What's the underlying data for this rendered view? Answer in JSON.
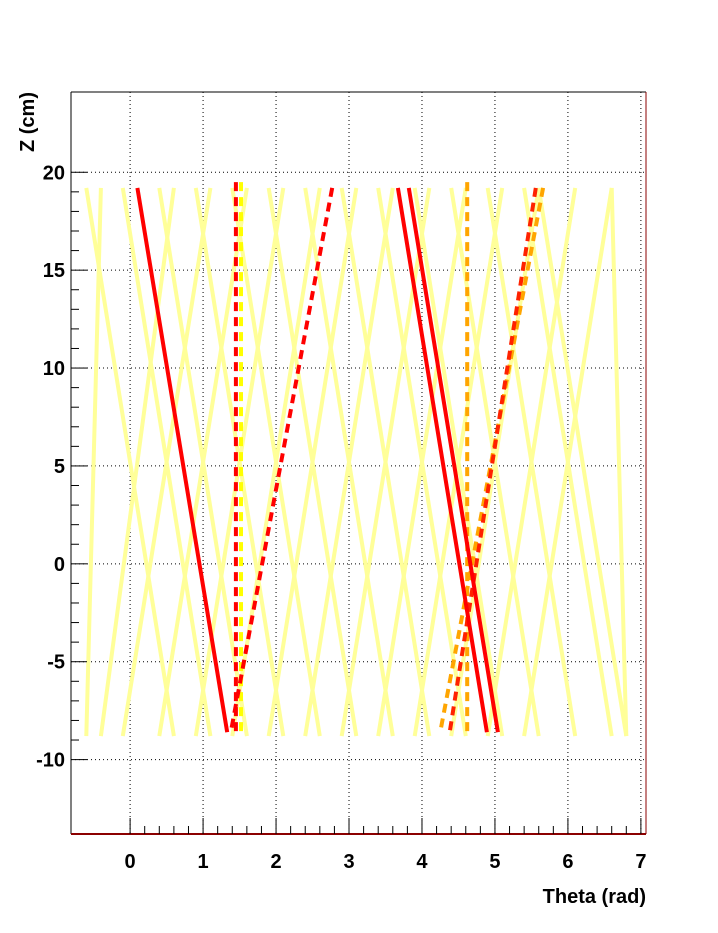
{
  "chart_data": {
    "type": "line",
    "xlabel": "Theta (rad)",
    "ylabel": "Z (cm)",
    "xlim": [
      -0.81,
      7.07
    ],
    "ylim": [
      -13.8,
      24.1
    ],
    "xticks": [
      0,
      1,
      2,
      3,
      4,
      5,
      6,
      7
    ],
    "yticks": [
      -10,
      -5,
      0,
      5,
      10,
      15,
      20
    ],
    "grid": true,
    "series": [
      {
        "color": "#ffff99",
        "style": "solid",
        "x": [
          -0.6,
          0.6
        ],
        "values": [
          19.2,
          -8.8
        ]
      },
      {
        "color": "#ffff99",
        "style": "solid",
        "x": [
          -0.1,
          1.1
        ],
        "values": [
          19.2,
          -8.8
        ]
      },
      {
        "color": "#ffff99",
        "style": "solid",
        "x": [
          0.4,
          1.6
        ],
        "values": [
          19.2,
          -8.8
        ]
      },
      {
        "color": "#ffff99",
        "style": "solid",
        "x": [
          0.9,
          2.1
        ],
        "values": [
          19.2,
          -8.8
        ]
      },
      {
        "color": "#ffff99",
        "style": "solid",
        "x": [
          1.4,
          2.6
        ],
        "values": [
          19.2,
          -8.8
        ]
      },
      {
        "color": "#ffff99",
        "style": "solid",
        "x": [
          1.9,
          3.1
        ],
        "values": [
          19.2,
          -8.8
        ]
      },
      {
        "color": "#ffff99",
        "style": "solid",
        "x": [
          2.4,
          3.6
        ],
        "values": [
          19.2,
          -8.8
        ]
      },
      {
        "color": "#ffff99",
        "style": "solid",
        "x": [
          2.9,
          4.1
        ],
        "values": [
          19.2,
          -8.8
        ]
      },
      {
        "color": "#ffff99",
        "style": "solid",
        "x": [
          3.4,
          4.6
        ],
        "values": [
          19.2,
          -8.8
        ]
      },
      {
        "color": "#ffff99",
        "style": "solid",
        "x": [
          3.9,
          5.1
        ],
        "values": [
          19.2,
          -8.8
        ]
      },
      {
        "color": "#ffff99",
        "style": "solid",
        "x": [
          4.4,
          5.6
        ],
        "values": [
          19.2,
          -8.8
        ]
      },
      {
        "color": "#ffff99",
        "style": "solid",
        "x": [
          4.9,
          6.1
        ],
        "values": [
          19.2,
          -8.8
        ]
      },
      {
        "color": "#ffff99",
        "style": "solid",
        "x": [
          5.4,
          6.6
        ],
        "values": [
          19.2,
          -8.8
        ]
      },
      {
        "color": "#ffff99",
        "style": "solid",
        "x": [
          5.6,
          6.8
        ],
        "values": [
          19.2,
          -8.8
        ]
      },
      {
        "color": "#ffff99",
        "style": "solid",
        "x": [
          -0.4,
          -0.6
        ],
        "values": [
          19.2,
          -8.8
        ]
      },
      {
        "color": "#ffff99",
        "style": "solid",
        "x": [
          0.6,
          -0.4
        ],
        "values": [
          19.2,
          -8.8
        ]
      },
      {
        "color": "#ffff99",
        "style": "solid",
        "x": [
          1.1,
          -0.1
        ],
        "values": [
          19.2,
          -8.8
        ]
      },
      {
        "color": "#ffff99",
        "style": "solid",
        "x": [
          1.6,
          0.4
        ],
        "values": [
          19.2,
          -8.8
        ]
      },
      {
        "color": "#ffff99",
        "style": "solid",
        "x": [
          2.1,
          0.9
        ],
        "values": [
          19.2,
          -8.8
        ]
      },
      {
        "color": "#ffff99",
        "style": "solid",
        "x": [
          2.6,
          1.4
        ],
        "values": [
          19.2,
          -8.8
        ]
      },
      {
        "color": "#ffff99",
        "style": "solid",
        "x": [
          3.1,
          1.9
        ],
        "values": [
          19.2,
          -8.8
        ]
      },
      {
        "color": "#ffff99",
        "style": "solid",
        "x": [
          3.6,
          2.4
        ],
        "values": [
          19.2,
          -8.8
        ]
      },
      {
        "color": "#ffff99",
        "style": "solid",
        "x": [
          4.1,
          2.9
        ],
        "values": [
          19.2,
          -8.8
        ]
      },
      {
        "color": "#ffff99",
        "style": "solid",
        "x": [
          4.6,
          3.4
        ],
        "values": [
          19.2,
          -8.8
        ]
      },
      {
        "color": "#ffff99",
        "style": "solid",
        "x": [
          5.1,
          3.9
        ],
        "values": [
          19.2,
          -8.8
        ]
      },
      {
        "color": "#ffff99",
        "style": "solid",
        "x": [
          5.6,
          4.4
        ],
        "values": [
          19.2,
          -8.8
        ]
      },
      {
        "color": "#ffff99",
        "style": "solid",
        "x": [
          6.1,
          4.9
        ],
        "values": [
          19.2,
          -8.8
        ]
      },
      {
        "color": "#ffff99",
        "style": "solid",
        "x": [
          6.6,
          5.4
        ],
        "values": [
          19.2,
          -8.8
        ]
      },
      {
        "color": "#ffff99",
        "style": "solid",
        "x": [
          6.6,
          6.8
        ],
        "values": [
          19.2,
          -8.8
        ]
      },
      {
        "color": "#ffff00",
        "style": "dashed",
        "x": [
          1.52,
          1.52
        ],
        "values": [
          19.5,
          -8.6
        ]
      },
      {
        "color": "#ff0000",
        "style": "dashed",
        "x": [
          1.45,
          1.45
        ],
        "values": [
          19.5,
          -8.6
        ]
      },
      {
        "color": "#ff0000",
        "style": "dashed",
        "x": [
          2.77,
          1.38
        ],
        "values": [
          19.2,
          -8.6
        ]
      },
      {
        "color": "#ffa500",
        "style": "dashed",
        "x": [
          4.62,
          4.62
        ],
        "values": [
          19.5,
          -8.6
        ]
      },
      {
        "color": "#ffa500",
        "style": "dashed",
        "x": [
          5.66,
          4.25
        ],
        "values": [
          19.2,
          -8.6
        ]
      },
      {
        "color": "#ff2200",
        "style": "dashed",
        "x": [
          5.56,
          4.38
        ],
        "values": [
          19.2,
          -8.6
        ]
      },
      {
        "color": "#ff0000",
        "style": "solid",
        "x": [
          0.1,
          1.33
        ],
        "values": [
          19.2,
          -8.6
        ]
      },
      {
        "color": "#ff0000",
        "style": "solid",
        "x": [
          3.67,
          4.89
        ],
        "values": [
          19.2,
          -8.6
        ]
      },
      {
        "color": "#ff0000",
        "style": "solid",
        "x": [
          3.82,
          5.04
        ],
        "values": [
          19.2,
          -8.6
        ]
      }
    ]
  }
}
